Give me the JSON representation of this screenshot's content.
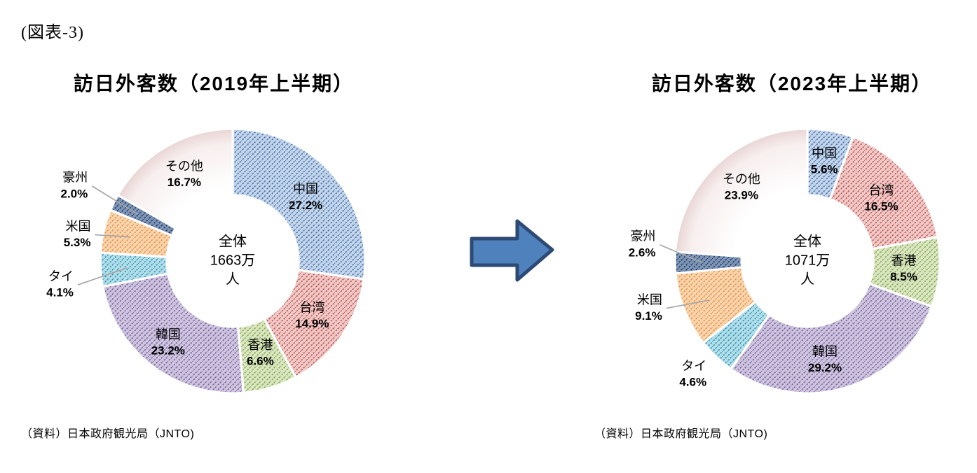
{
  "figure_label": "(図表-3)",
  "arrow": {
    "fill": "#4F81BD",
    "stroke": "#2C4A74"
  },
  "chart_data": [
    {
      "type": "pie",
      "subtype": "donut",
      "title": "訪日外客数（2019年上半期）",
      "center_label": [
        "全体",
        "1663万",
        "人"
      ],
      "source": "（資料）日本政府観光局（JNTO)",
      "unit": "%",
      "order": "clockwise-from-top",
      "legend_position": "none",
      "slices": [
        {
          "name": "中国",
          "value": 27.2,
          "label": "27.2%",
          "bg": "#C4D6EC",
          "hatch": "#4A72A8",
          "placement": "inside"
        },
        {
          "name": "台湾",
          "value": 14.9,
          "label": "14.9%",
          "bg": "#F1CAC8",
          "hatch": "#BB5855",
          "placement": "inside"
        },
        {
          "name": "香港",
          "value": 6.6,
          "label": "6.6%",
          "bg": "#DBE7C3",
          "hatch": "#86A851",
          "placement": "inside"
        },
        {
          "name": "韓国",
          "value": 23.2,
          "label": "23.2%",
          "bg": "#CFC5DF",
          "hatch": "#79659F",
          "placement": "inside",
          "nudge": [
            -9,
            7
          ]
        },
        {
          "name": "タイ",
          "value": 4.1,
          "label": "4.1%",
          "bg": "#B2DFEC",
          "hatch": "#3A93AB",
          "placement": "outside",
          "nudge": [
            3,
            19
          ],
          "leader": true
        },
        {
          "name": "米国",
          "value": 5.3,
          "label": "5.3%",
          "bg": "#FBD5AC",
          "hatch": "#E0914E",
          "placement": "outside",
          "nudge": [
            22,
            15
          ],
          "leader": true
        },
        {
          "name": "豪州",
          "value": 2.0,
          "label": "2.0%",
          "bg": "#7E95B5",
          "hatch": "#1F3B66",
          "placement": "outside",
          "nudge": [
            0,
            -5
          ],
          "leader": true
        },
        {
          "name": "その他",
          "value": 16.7,
          "label": "16.7%",
          "fill_style": "plain",
          "bg": "#FFFFFF",
          "edge": "#E9D5D5",
          "placement": "inside",
          "nudge": [
            0,
            -4
          ]
        }
      ]
    },
    {
      "type": "pie",
      "subtype": "donut",
      "title": "訪日外客数（2023年上半期）",
      "center_label": [
        "全体",
        "1071万",
        "人"
      ],
      "source": "（資料）日本政府観光局（JNTO)",
      "unit": "%",
      "order": "clockwise-from-top",
      "legend_position": "none",
      "slices": [
        {
          "name": "中国",
          "value": 5.6,
          "label": "5.6%",
          "bg": "#C4D6EC",
          "hatch": "#4A72A8",
          "placement": "inside",
          "nudge": [
            0,
            -6
          ]
        },
        {
          "name": "台湾",
          "value": 16.5,
          "label": "16.5%",
          "bg": "#F1CAC8",
          "hatch": "#BB5855",
          "placement": "inside"
        },
        {
          "name": "香港",
          "value": 8.5,
          "label": "8.5%",
          "bg": "#DBE7C3",
          "hatch": "#86A851",
          "placement": "inside"
        },
        {
          "name": "韓国",
          "value": 29.2,
          "label": "29.2%",
          "bg": "#CFC5DF",
          "hatch": "#79659F",
          "placement": "inside",
          "nudge": [
            -16,
            10
          ]
        },
        {
          "name": "タイ",
          "value": 4.6,
          "label": "4.6%",
          "bg": "#B2DFEC",
          "hatch": "#3A93AB",
          "placement": "outside",
          "nudge": [
            15,
            -5
          ],
          "leader": false
        },
        {
          "name": "米国",
          "value": 9.1,
          "label": "9.1%",
          "bg": "#FBD5AC",
          "hatch": "#E0914E",
          "placement": "outside",
          "nudge": [
            7,
            -18
          ],
          "leader": true
        },
        {
          "name": "豪州",
          "value": 2.6,
          "label": "2.6%",
          "bg": "#7E95B5",
          "hatch": "#1F3B66",
          "placement": "outside",
          "nudge": [
            14,
            -26
          ],
          "leader": true
        },
        {
          "name": "その他",
          "value": 23.9,
          "label": "23.9%",
          "fill_style": "plain",
          "bg": "#FFFFFF",
          "edge": "#E9D5D5",
          "placement": "inside",
          "nudge": [
            0,
            -4
          ]
        }
      ]
    }
  ]
}
